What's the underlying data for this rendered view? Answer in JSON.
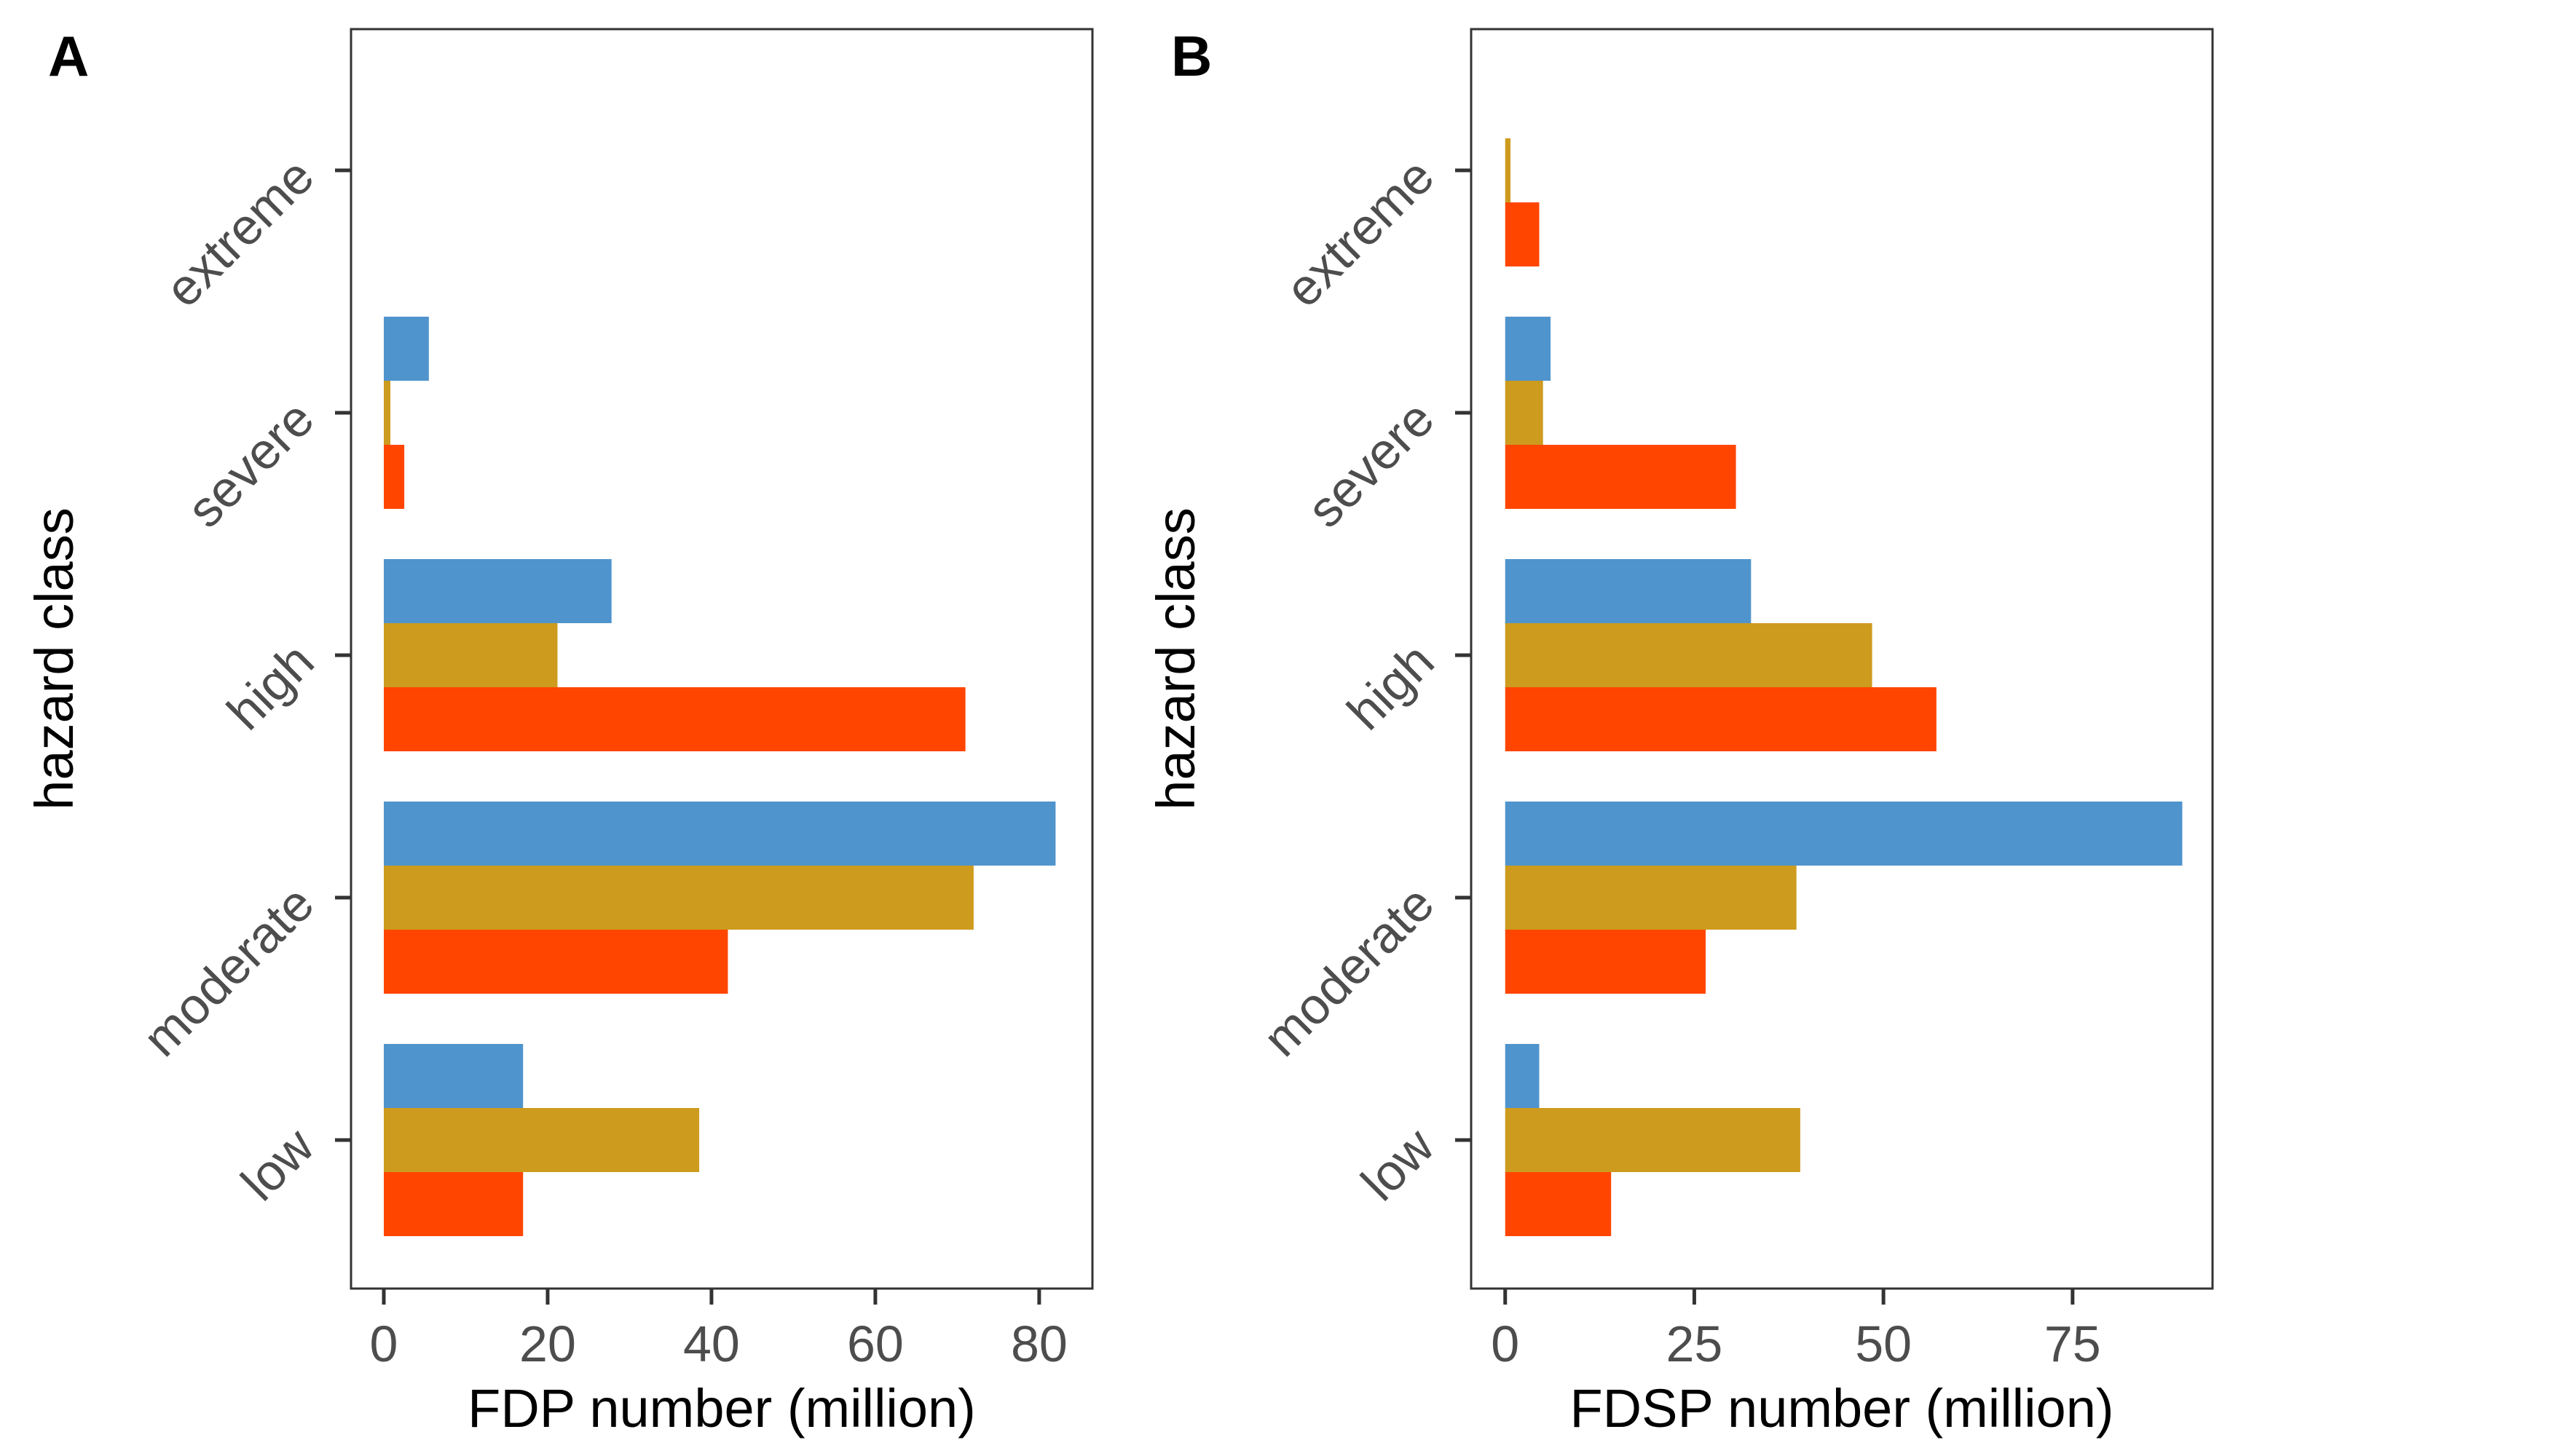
{
  "colors": {
    "series_1": "#4F94CD",
    "series_2": "#CD9B1D",
    "series_3": "#FF4500"
  },
  "chart_data": [
    {
      "panel_label": "A",
      "type": "bar",
      "orientation": "horizontal",
      "categories": [
        "low",
        "moderate",
        "high",
        "severe",
        "extreme"
      ],
      "series": [
        {
          "color": "#4F94CD",
          "values": [
            17,
            82,
            27.8,
            5.5,
            0
          ]
        },
        {
          "color": "#CD9B1D",
          "values": [
            38.5,
            72,
            21.2,
            0.8,
            0
          ]
        },
        {
          "color": "#FF4500",
          "values": [
            17,
            42,
            71,
            2.5,
            0
          ]
        }
      ],
      "xlabel": "FDP number (million)",
      "ylabel": "hazard class",
      "xticks": [
        0,
        20,
        40,
        60,
        80
      ],
      "xlim": [
        -4,
        86.5
      ],
      "grid": false,
      "legend": "none"
    },
    {
      "panel_label": "B",
      "type": "bar",
      "orientation": "horizontal",
      "categories": [
        "low",
        "moderate",
        "high",
        "severe",
        "extreme"
      ],
      "series": [
        {
          "color": "#4F94CD",
          "values": [
            4.5,
            89.5,
            32.5,
            6,
            0
          ]
        },
        {
          "color": "#CD9B1D",
          "values": [
            39,
            38.5,
            48.5,
            5,
            0.7
          ]
        },
        {
          "color": "#FF4500",
          "values": [
            14,
            26.5,
            57,
            30.5,
            4.5
          ]
        }
      ],
      "xlabel": "FDSP number (million)",
      "ylabel": "hazard class",
      "xticks": [
        0,
        25,
        50,
        75
      ],
      "xlim": [
        -4.5,
        93.5
      ],
      "grid": false,
      "legend": "none"
    }
  ]
}
